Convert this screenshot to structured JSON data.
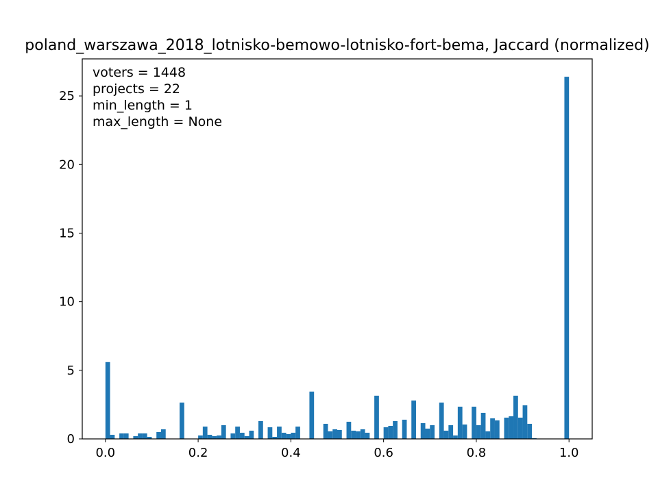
{
  "chart_data": {
    "type": "bar",
    "title": "poland_warszawa_2018_lotnisko-bemowo-lotnisko-fort-bema, Jaccard (normalized)",
    "xlabel": "",
    "ylabel": "",
    "xlim": [
      -0.05,
      1.05
    ],
    "ylim": [
      0,
      27.7
    ],
    "xticks": [
      0.0,
      0.2,
      0.4,
      0.6,
      0.8,
      1.0
    ],
    "xtick_labels": [
      "0.0",
      "0.2",
      "0.4",
      "0.6",
      "0.8",
      "1.0"
    ],
    "yticks": [
      0,
      5,
      10,
      15,
      20,
      25
    ],
    "ytick_labels": [
      "0",
      "5",
      "10",
      "15",
      "20",
      "25"
    ],
    "bin_width": 0.01,
    "grid": false,
    "color": "#1f77b4",
    "annotations": [
      "voters = 1448",
      "projects = 22",
      "min_length = 1",
      "max_length = None"
    ],
    "bins": [
      {
        "x": 0.0,
        "y": 5.6
      },
      {
        "x": 0.01,
        "y": 0.3
      },
      {
        "x": 0.03,
        "y": 0.4
      },
      {
        "x": 0.04,
        "y": 0.4
      },
      {
        "x": 0.06,
        "y": 0.2
      },
      {
        "x": 0.07,
        "y": 0.4
      },
      {
        "x": 0.08,
        "y": 0.4
      },
      {
        "x": 0.09,
        "y": 0.15
      },
      {
        "x": 0.11,
        "y": 0.5
      },
      {
        "x": 0.12,
        "y": 0.7
      },
      {
        "x": 0.16,
        "y": 2.65
      },
      {
        "x": 0.2,
        "y": 0.25
      },
      {
        "x": 0.21,
        "y": 0.9
      },
      {
        "x": 0.22,
        "y": 0.3
      },
      {
        "x": 0.23,
        "y": 0.2
      },
      {
        "x": 0.24,
        "y": 0.25
      },
      {
        "x": 0.25,
        "y": 1.0
      },
      {
        "x": 0.27,
        "y": 0.4
      },
      {
        "x": 0.28,
        "y": 0.9
      },
      {
        "x": 0.29,
        "y": 0.45
      },
      {
        "x": 0.3,
        "y": 0.2
      },
      {
        "x": 0.31,
        "y": 0.6
      },
      {
        "x": 0.33,
        "y": 1.3
      },
      {
        "x": 0.35,
        "y": 0.85
      },
      {
        "x": 0.36,
        "y": 0.15
      },
      {
        "x": 0.37,
        "y": 0.9
      },
      {
        "x": 0.38,
        "y": 0.45
      },
      {
        "x": 0.39,
        "y": 0.35
      },
      {
        "x": 0.4,
        "y": 0.45
      },
      {
        "x": 0.41,
        "y": 0.9
      },
      {
        "x": 0.44,
        "y": 3.45
      },
      {
        "x": 0.47,
        "y": 1.1
      },
      {
        "x": 0.48,
        "y": 0.55
      },
      {
        "x": 0.49,
        "y": 0.7
      },
      {
        "x": 0.5,
        "y": 0.65
      },
      {
        "x": 0.52,
        "y": 1.25
      },
      {
        "x": 0.53,
        "y": 0.6
      },
      {
        "x": 0.54,
        "y": 0.55
      },
      {
        "x": 0.55,
        "y": 0.7
      },
      {
        "x": 0.56,
        "y": 0.45
      },
      {
        "x": 0.58,
        "y": 3.15
      },
      {
        "x": 0.6,
        "y": 0.85
      },
      {
        "x": 0.61,
        "y": 0.95
      },
      {
        "x": 0.62,
        "y": 1.3
      },
      {
        "x": 0.64,
        "y": 1.4
      },
      {
        "x": 0.66,
        "y": 2.8
      },
      {
        "x": 0.68,
        "y": 1.15
      },
      {
        "x": 0.69,
        "y": 0.75
      },
      {
        "x": 0.7,
        "y": 1.0
      },
      {
        "x": 0.72,
        "y": 2.65
      },
      {
        "x": 0.73,
        "y": 0.6
      },
      {
        "x": 0.74,
        "y": 1.0
      },
      {
        "x": 0.75,
        "y": 0.25
      },
      {
        "x": 0.76,
        "y": 2.35
      },
      {
        "x": 0.77,
        "y": 1.05
      },
      {
        "x": 0.79,
        "y": 2.35
      },
      {
        "x": 0.8,
        "y": 1.0
      },
      {
        "x": 0.81,
        "y": 1.9
      },
      {
        "x": 0.82,
        "y": 0.55
      },
      {
        "x": 0.83,
        "y": 1.5
      },
      {
        "x": 0.84,
        "y": 1.35
      },
      {
        "x": 0.86,
        "y": 1.55
      },
      {
        "x": 0.87,
        "y": 1.65
      },
      {
        "x": 0.88,
        "y": 3.15
      },
      {
        "x": 0.89,
        "y": 1.55
      },
      {
        "x": 0.9,
        "y": 2.45
      },
      {
        "x": 0.91,
        "y": 1.1
      },
      {
        "x": 0.92,
        "y": 0.05
      },
      {
        "x": 0.99,
        "y": 26.4
      }
    ]
  }
}
